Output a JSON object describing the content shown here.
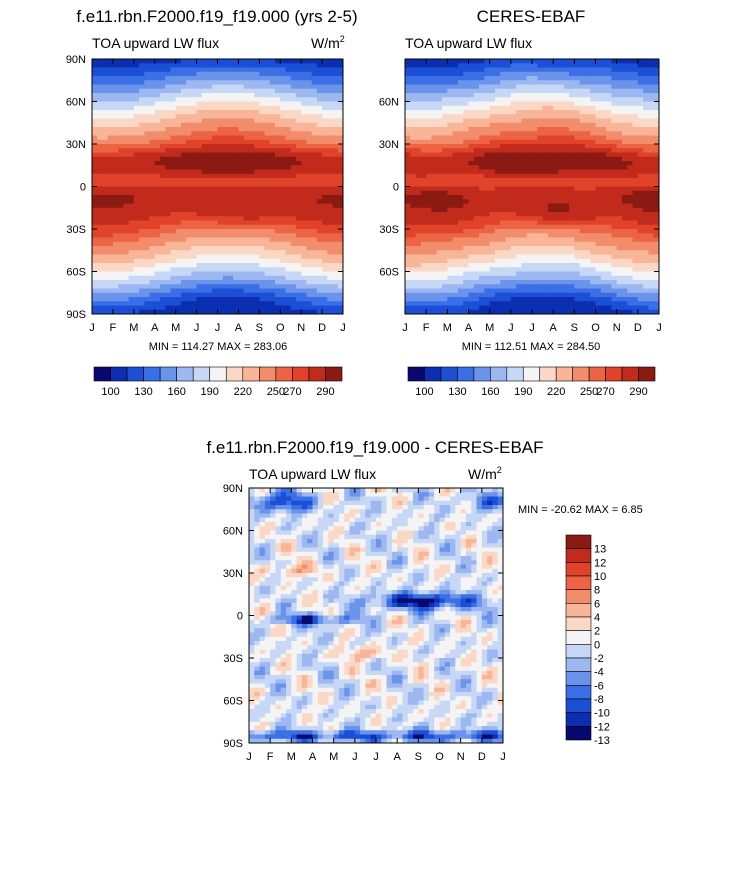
{
  "colors": {
    "abs_palette": [
      "#08086e",
      "#0b2fb0",
      "#1a4fd6",
      "#3a6fe6",
      "#6a94ec",
      "#9db8f0",
      "#c7d8f6",
      "#f4f4f4",
      "#fbd8c5",
      "#f8b597",
      "#f28d6c",
      "#ec6443",
      "#e0432a",
      "#c22a1c",
      "#8a1a12"
    ],
    "diff_palette": [
      "#08086e",
      "#0b2fb0",
      "#1a4fd6",
      "#3a6fe6",
      "#6a94ec",
      "#9db8f0",
      "#c7d8f6",
      "#f4f4f4",
      "#fbd8c5",
      "#f8b597",
      "#f28d6c",
      "#ec6443",
      "#e0432a",
      "#c22a1c",
      "#8a1a12"
    ]
  },
  "chart_data": [
    {
      "type": "heatmap",
      "title": "f.e11.rbn.F2000.f19_f19.000 (yrs 2-5)",
      "subtitle_left": "TOA upward LW flux",
      "units_base": "W/m",
      "units_exp": "2",
      "x_ticks": [
        "J",
        "F",
        "M",
        "A",
        "M",
        "J",
        "J",
        "A",
        "S",
        "O",
        "N",
        "D",
        "J"
      ],
      "y_ticks": [
        "90N",
        "60N",
        "30N",
        "0",
        "30S",
        "60S",
        "90S"
      ],
      "stats": "MIN = 114.27 MAX = 283.06",
      "colorbar_labels": [
        "100",
        "130",
        "160",
        "190",
        "220",
        "250",
        "270",
        "290"
      ],
      "field": "model",
      "min": 114.27,
      "max": 283.06
    },
    {
      "type": "heatmap",
      "title": "CERES-EBAF",
      "subtitle_left": "TOA upward LW flux",
      "units_base": "",
      "units_exp": "",
      "x_ticks": [
        "J",
        "F",
        "M",
        "A",
        "M",
        "J",
        "J",
        "A",
        "S",
        "O",
        "N",
        "D",
        "J"
      ],
      "y_ticks": [
        "",
        "60N",
        "30N",
        "0",
        "30S",
        "60S",
        ""
      ],
      "stats": "MIN = 112.51 MAX = 284.50",
      "colorbar_labels": [
        "100",
        "130",
        "160",
        "190",
        "220",
        "250",
        "270",
        "290"
      ],
      "field": "obs",
      "min": 112.51,
      "max": 284.5
    },
    {
      "type": "heatmap",
      "title": "f.e11.rbn.F2000.f19_f19.000 - CERES-EBAF",
      "subtitle_left": "TOA upward LW flux",
      "units_base": "W/m",
      "units_exp": "2",
      "x_ticks": [
        "J",
        "F",
        "M",
        "A",
        "M",
        "J",
        "J",
        "A",
        "S",
        "O",
        "N",
        "D",
        "J"
      ],
      "y_ticks": [
        "90N",
        "60N",
        "30N",
        "0",
        "30S",
        "60S",
        "90S"
      ],
      "stats": "MIN = -20.62 MAX =   6.85",
      "colorbar_labels": [
        "13",
        "12",
        "10",
        "8",
        "6",
        "4",
        "2",
        "0",
        "-2",
        "-4",
        "-6",
        "-8",
        "-10",
        "-12",
        "-13"
      ],
      "field": "diff",
      "min": -20.62,
      "max": 6.85
    }
  ]
}
